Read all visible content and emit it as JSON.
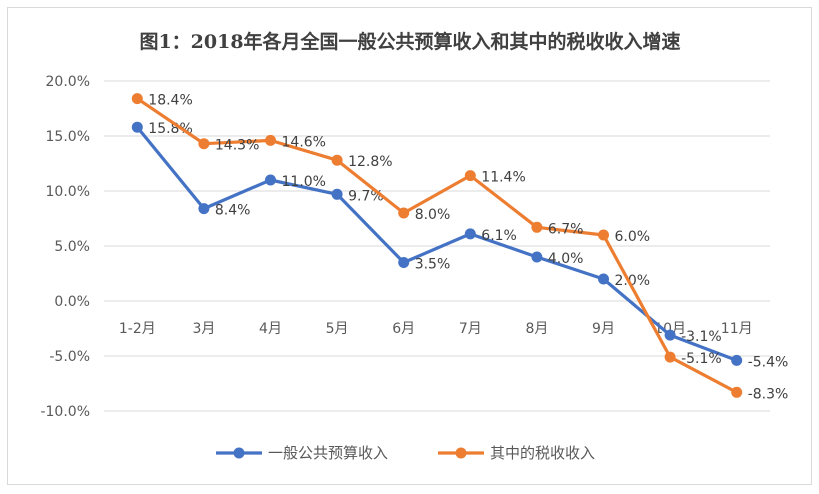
{
  "chart_data": {
    "type": "line",
    "title": "图1：2018年各月全国一般公共预算收入和其中的税收收入增速",
    "xlabel": "",
    "ylabel": "",
    "categories": [
      "1-2月",
      "3月",
      "4月",
      "5月",
      "6月",
      "7月",
      "8月",
      "9月",
      "10月",
      "11月"
    ],
    "ylim": [
      -10,
      20
    ],
    "yticks": [
      20,
      15,
      10,
      5,
      0,
      -5,
      -10
    ],
    "ytick_labels": [
      "20.0%",
      "15.0%",
      "10.0%",
      "5.0%",
      "0.0%",
      "-5.0%",
      "-10.0%"
    ],
    "grid": true,
    "legend_position": "bottom",
    "series": [
      {
        "name": "一般公共预算收入",
        "color": "#4472c4",
        "values": [
          15.8,
          8.4,
          11.0,
          9.7,
          3.5,
          6.1,
          4.0,
          2.0,
          -3.1,
          -5.4
        ],
        "labels": [
          "15.8%",
          "8.4%",
          "11.0%",
          "9.7%",
          "3.5%",
          "6.1%",
          "4.0%",
          "2.0%",
          "-3.1%",
          "-5.4%"
        ]
      },
      {
        "name": "其中的税收收入",
        "color": "#ed7d31",
        "values": [
          18.4,
          14.3,
          14.6,
          12.8,
          8.0,
          11.4,
          6.7,
          6.0,
          -5.1,
          -8.3
        ],
        "labels": [
          "18.4%",
          "14.3%",
          "14.6%",
          "12.8%",
          "8.0%",
          "11.4%",
          "6.7%",
          "6.0%",
          "-5.1%",
          "-8.3%"
        ]
      }
    ]
  }
}
